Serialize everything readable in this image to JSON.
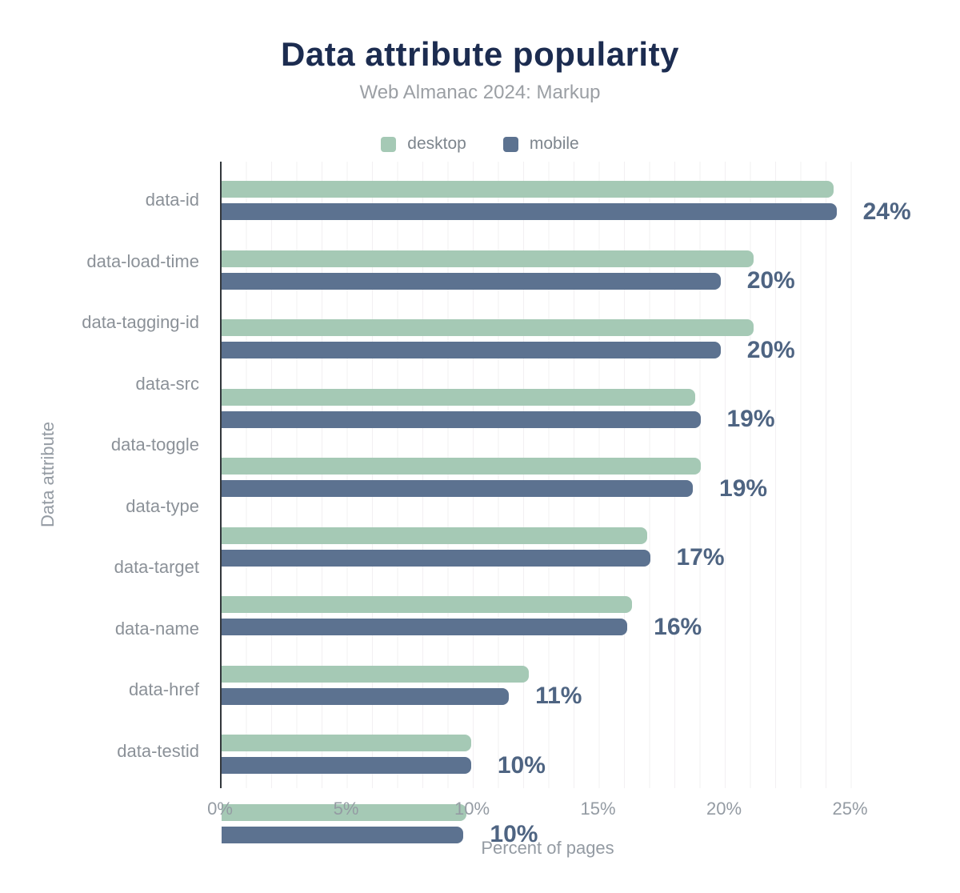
{
  "header": {
    "title": "Data attribute popularity",
    "subtitle": "Web Almanac 2024: Markup"
  },
  "legend": [
    {
      "label": "desktop",
      "color": "#a5c9b5"
    },
    {
      "label": "mobile",
      "color": "#5c7290"
    }
  ],
  "colors": {
    "desktop_bar": "#a5c9b5",
    "mobile_bar": "#5c7290",
    "title_text": "#1c2c50",
    "gray_text": "#949ba3",
    "value_label": "#4e6482",
    "axis_line": "#32373c",
    "gridline": "#f2f0f2"
  },
  "chart_data": {
    "type": "bar",
    "orientation": "horizontal",
    "title": "Data attribute popularity",
    "subtitle": "Web Almanac 2024: Markup",
    "categories": [
      "data-id",
      "data-load-time",
      "data-tagging-id",
      "data-src",
      "data-toggle",
      "data-type",
      "data-target",
      "data-name",
      "data-href",
      "data-testid"
    ],
    "series": [
      {
        "name": "desktop",
        "values": [
          24.3,
          21.1,
          21.1,
          18.8,
          19.0,
          16.9,
          16.3,
          12.2,
          9.9,
          9.7
        ]
      },
      {
        "name": "mobile",
        "values": [
          24.4,
          19.8,
          19.8,
          19.0,
          18.7,
          17.0,
          16.1,
          11.4,
          9.9,
          9.6
        ]
      }
    ],
    "value_labels": [
      "24%",
      "20%",
      "20%",
      "19%",
      "19%",
      "17%",
      "16%",
      "11%",
      "10%",
      "10%"
    ],
    "xlabel": "Percent of pages",
    "ylabel": "Data attribute",
    "x_ticks": [
      "0%",
      "5%",
      "10%",
      "15%",
      "20%",
      "25%"
    ],
    "x_tick_values": [
      0,
      5,
      10,
      15,
      20,
      25
    ],
    "xlim": [
      0,
      26
    ],
    "grid": "vertical lines every 1%",
    "legend_position": "top"
  }
}
